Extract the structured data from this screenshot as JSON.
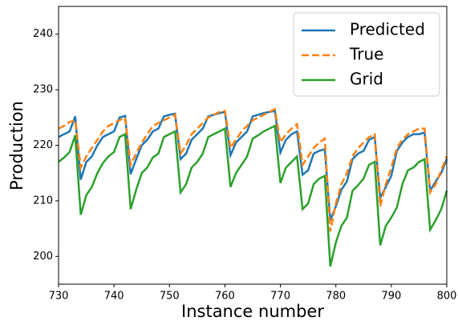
{
  "chart_data": {
    "type": "line",
    "xlabel": "Instance number",
    "ylabel": "Production",
    "x": [
      730,
      731,
      732,
      733,
      734,
      735,
      736,
      737,
      738,
      739,
      740,
      741,
      742,
      743,
      744,
      745,
      746,
      747,
      748,
      749,
      750,
      751,
      752,
      753,
      754,
      755,
      756,
      757,
      758,
      759,
      760,
      761,
      762,
      763,
      764,
      765,
      766,
      767,
      768,
      769,
      770,
      771,
      772,
      773,
      774,
      775,
      776,
      777,
      778,
      779,
      780,
      781,
      782,
      783,
      784,
      785,
      786,
      787,
      788,
      789,
      790,
      791,
      792,
      793,
      794,
      795,
      796,
      797,
      798,
      799,
      800
    ],
    "series": [
      {
        "name": "Predicted",
        "color": "#1f77b4",
        "linestyle": "solid",
        "values": [
          221.5,
          222,
          222.5,
          225.2,
          213.8,
          217,
          218,
          220,
          221.5,
          222,
          222.5,
          225,
          225.3,
          214.8,
          217.5,
          220,
          221,
          222.5,
          223,
          225.2,
          225.5,
          225.7,
          217.5,
          218.5,
          221,
          222,
          223,
          225.2,
          225.5,
          225.8,
          226,
          218.2,
          220.5,
          221.5,
          222.5,
          225.2,
          225.5,
          225.8,
          226,
          226.2,
          218.7,
          221,
          222,
          222.5,
          214.7,
          215.5,
          218.5,
          219,
          219.3,
          206.5,
          209,
          212,
          213.5,
          217.5,
          218.5,
          219,
          221,
          221.5,
          210.5,
          212.5,
          214.5,
          219,
          220.5,
          221.5,
          222,
          222,
          222.3,
          211.8,
          213.5,
          215,
          217.5
        ]
      },
      {
        "name": "True",
        "color": "#ff7f0e",
        "linestyle": "dashed",
        "values": [
          223,
          223.5,
          224.2,
          224.5,
          216,
          218,
          219.5,
          221,
          222.5,
          223.5,
          224,
          224.5,
          225,
          216.5,
          218.5,
          220.5,
          222,
          223.5,
          224,
          224.5,
          225,
          225.5,
          218.5,
          220,
          222,
          223,
          224,
          225,
          225.5,
          226,
          226.2,
          219.5,
          221,
          222.5,
          223.5,
          224.5,
          225,
          225.5,
          226,
          226.5,
          220.5,
          222,
          223,
          223.8,
          216.5,
          218,
          219.5,
          220.5,
          221.2,
          204.5,
          209.5,
          213,
          215,
          218,
          219.5,
          220.5,
          221.5,
          222,
          209,
          213,
          216,
          219.5,
          221,
          222,
          222.5,
          223,
          223,
          211.5,
          213,
          215.5,
          218
        ]
      },
      {
        "name": "Grid",
        "color": "#2ca02c",
        "linestyle": "solid",
        "values": [
          217,
          217.8,
          218.8,
          221.8,
          207.5,
          211,
          212.5,
          215,
          216.8,
          218,
          218.8,
          221.5,
          222,
          208.5,
          212,
          215,
          216,
          217.8,
          218.5,
          221.5,
          222,
          222.5,
          211.5,
          213,
          216,
          217,
          218.5,
          221.5,
          222,
          222.5,
          223,
          212.5,
          215,
          216.5,
          218,
          221.2,
          221.8,
          222.5,
          223,
          223.5,
          213.2,
          216,
          217,
          218,
          208.5,
          209.5,
          213,
          214,
          214.5,
          198.2,
          202.5,
          205.5,
          207,
          211.8,
          212.8,
          214,
          216.5,
          217,
          202,
          205.5,
          207,
          208.8,
          213,
          215.5,
          216,
          217,
          217.5,
          204.8,
          206.5,
          208.5,
          211.8
        ]
      }
    ],
    "xlim": [
      730,
      800
    ],
    "xticks": [
      730,
      740,
      750,
      760,
      770,
      780,
      790,
      800
    ],
    "ylim": [
      195,
      245
    ],
    "yticks": [
      200,
      210,
      220,
      230,
      240
    ],
    "legend": "upper right"
  }
}
